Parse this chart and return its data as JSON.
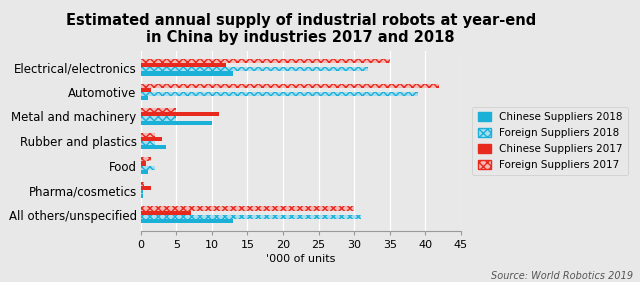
{
  "title": "Estimated annual supply of industrial robots at year-end\nin China by industries 2017 and 2018",
  "xlabel": "'000 of units",
  "source": "Source: World Robotics 2019",
  "categories": [
    "Electrical/electronics",
    "Automotive",
    "Metal and machinery",
    "Rubber and plastics",
    "Food",
    "Pharma/cosmetics",
    "All others/unspecified"
  ],
  "chinese_2018": [
    13,
    1,
    10,
    3.5,
    1.0,
    0.3,
    13
  ],
  "foreign_2018": [
    32,
    39,
    5,
    2,
    2.0,
    0.3,
    31
  ],
  "chinese_2017": [
    12,
    1.5,
    11,
    3,
    0.8,
    1.5,
    7
  ],
  "foreign_2017": [
    35,
    42,
    5,
    2,
    1.5,
    0.5,
    30
  ],
  "color_chinese_2018": "#1ab0d8",
  "color_foreign_2018": "#a8ddf0",
  "color_chinese_2017": "#e8291e",
  "color_foreign_2017": "#f5b8b4",
  "xlim": [
    0,
    45
  ],
  "xticks": [
    0,
    5,
    10,
    15,
    20,
    25,
    30,
    35,
    40,
    45
  ],
  "background_color": "#e8e8e8",
  "legend_labels": [
    "Chinese Suppliers 2018",
    "Foreign Suppliers 2018",
    "Chinese Suppliers 2017",
    "Foreign Suppliers 2017"
  ],
  "bar_height": 0.17,
  "title_fontsize": 10.5,
  "label_fontsize": 8.5,
  "tick_fontsize": 8
}
